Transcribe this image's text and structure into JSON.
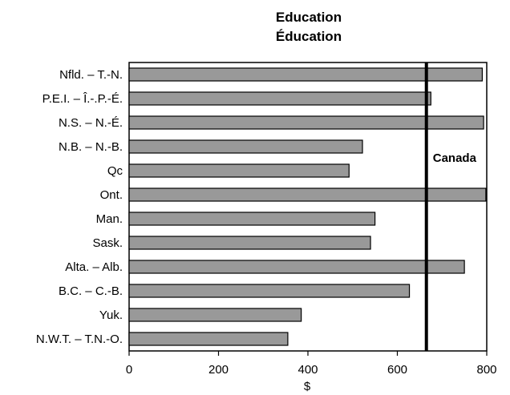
{
  "chart_data": {
    "type": "bar",
    "orientation": "horizontal",
    "title_en": "Education",
    "title_fr": "Éducation",
    "xlabel": "$",
    "ylabel": "",
    "categories": [
      "Nfld. – T.-N.",
      "P.E.I. – Î.-.P.-É.",
      "N.S. – N.-É.",
      "N.B. – N.-B.",
      "Qc",
      "Ont.",
      "Man.",
      "Sask.",
      "Alta. – Alb.",
      "B.C. – C.-B.",
      "Yuk.",
      "N.W.T. – T.N.-O."
    ],
    "values": [
      790,
      675,
      793,
      522,
      492,
      798,
      550,
      540,
      750,
      627,
      385,
      355
    ],
    "xlim": [
      0,
      800
    ],
    "xticks": [
      0,
      200,
      400,
      600,
      800
    ],
    "grid": false,
    "reference_line": {
      "label": "Canada",
      "value": 665
    },
    "bar_color": "#999999"
  }
}
